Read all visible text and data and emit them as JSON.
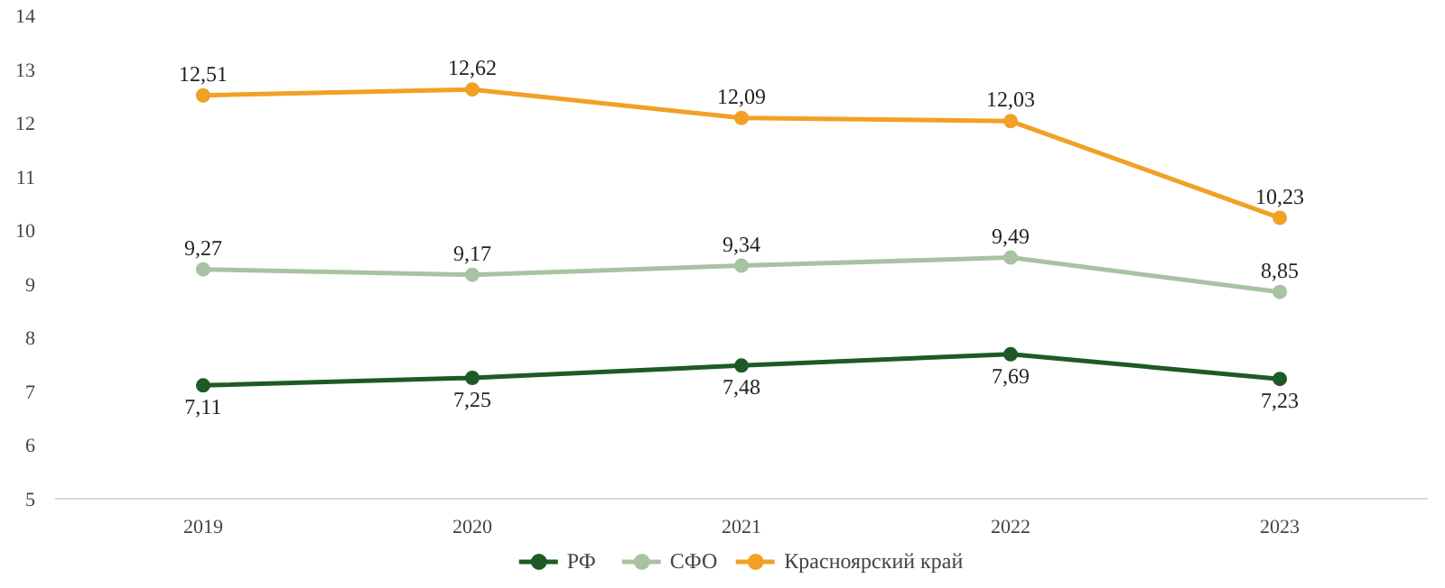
{
  "chart_data": {
    "type": "line",
    "categories": [
      "2019",
      "2020",
      "2021",
      "2022",
      "2023"
    ],
    "series": [
      {
        "name": "РФ",
        "color": "#1e5a26",
        "values": [
          7.11,
          7.25,
          7.48,
          7.69,
          7.23
        ],
        "value_labels": [
          "7,11",
          "7,25",
          "7,48",
          "7,69",
          "7,23"
        ]
      },
      {
        "name": "СФО",
        "color": "#a9c2a3",
        "values": [
          9.27,
          9.17,
          9.34,
          9.49,
          8.85
        ],
        "value_labels": [
          "9,27",
          "9,17",
          "9,34",
          "9,49",
          "8,85"
        ]
      },
      {
        "name": "Красноярский край",
        "color": "#f0a126",
        "values": [
          12.51,
          12.62,
          12.09,
          12.03,
          10.23
        ],
        "value_labels": [
          "12,51",
          "12,62",
          "12,09",
          "12,03",
          "10,23"
        ]
      }
    ],
    "ylim": [
      5,
      14
    ],
    "yticks": [
      5,
      6,
      7,
      8,
      9,
      10,
      11,
      12,
      13,
      14
    ],
    "grid": false,
    "legend": "bottom",
    "marker": "circle",
    "line_style": "solid"
  }
}
